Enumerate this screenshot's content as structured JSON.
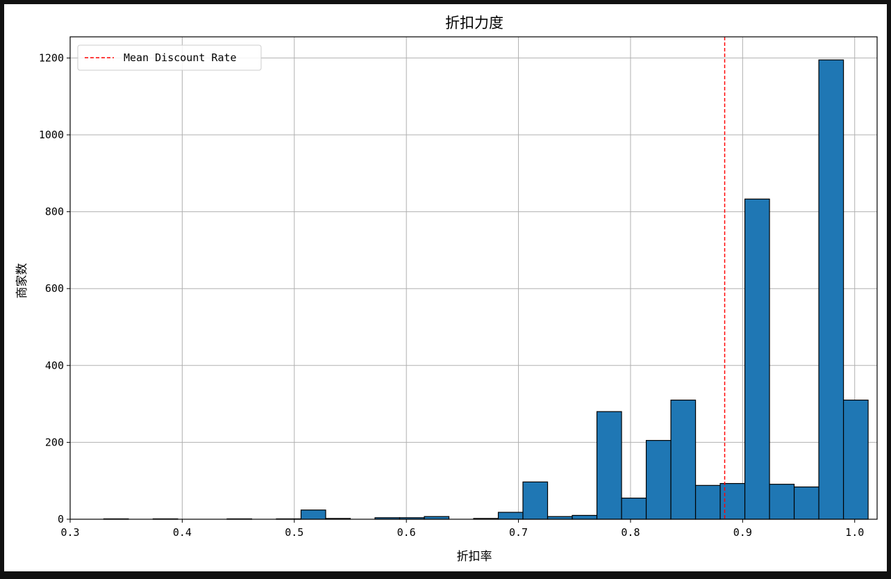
{
  "colors": {
    "bar_fill": "#1f77b4",
    "bar_edge": "#000000",
    "grid": "#b0b0b0",
    "mean_line": "#ff0000",
    "frame_bg": "#111111"
  },
  "chart_data": {
    "type": "bar",
    "title": "折扣力度",
    "xlabel": "折扣率",
    "ylabel": "商家数",
    "xlim": [
      0.3,
      1.02
    ],
    "ylim": [
      0,
      1255
    ],
    "grid": true,
    "legend_position": "top-left",
    "x_ticks": [
      0.3,
      0.4,
      0.5,
      0.6,
      0.7,
      0.8,
      0.9,
      1.0
    ],
    "x_tick_labels": [
      "0.3",
      "0.4",
      "0.5",
      "0.6",
      "0.7",
      "0.8",
      "0.9",
      "1.0"
    ],
    "y_ticks": [
      0,
      200,
      400,
      600,
      800,
      1000,
      1200
    ],
    "y_tick_labels": [
      "0",
      "200",
      "400",
      "600",
      "800",
      "1000",
      "1200"
    ],
    "bin_start": 0.33,
    "bin_width": 0.022,
    "values": [
      1,
      0,
      1,
      0,
      0,
      1,
      0,
      1,
      24,
      2,
      0,
      4,
      4,
      7,
      0,
      2,
      18,
      97,
      7,
      10,
      280,
      55,
      205,
      310,
      88,
      93,
      833,
      91,
      84,
      1195,
      310
    ],
    "mean_line": {
      "x": 0.884,
      "label": "Mean Discount Rate",
      "style": "dashed"
    }
  }
}
